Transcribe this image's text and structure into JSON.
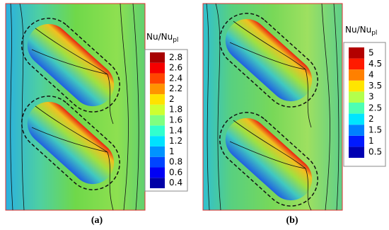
{
  "chart_data": [
    {
      "type": "contour",
      "panel_label": "(a)",
      "colorbar_label": "Nu/Nu",
      "colorbar_label_sub": "pl",
      "ylim": [
        0.3,
        2.9
      ],
      "yticks": [
        0.4,
        0.6,
        0.8,
        1,
        1.2,
        1.4,
        1.6,
        1.8,
        2,
        2.2,
        2.4,
        2.6,
        2.8
      ]
    },
    {
      "type": "contour",
      "panel_label": "(b)",
      "colorbar_label": "Nu/Nu",
      "colorbar_label_sub": "pl",
      "ylim": [
        0.25,
        5.25
      ],
      "yticks": [
        0.5,
        1,
        1.5,
        2,
        2.5,
        3,
        3.5,
        4,
        4.5,
        5
      ]
    }
  ]
}
